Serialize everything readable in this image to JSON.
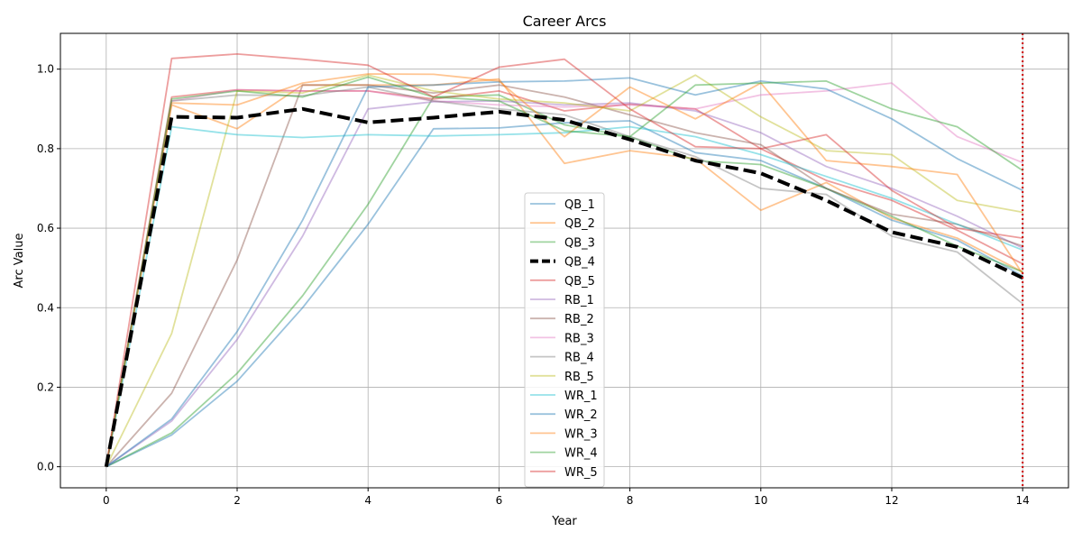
{
  "chart_data": {
    "type": "line",
    "title": "Career Arcs",
    "xlabel": "Year",
    "ylabel": "Arc Value",
    "xlim": [
      -0.7,
      14.7
    ],
    "ylim": [
      -0.053,
      1.09
    ],
    "xticks": [
      0,
      2,
      4,
      6,
      8,
      10,
      12,
      14
    ],
    "yticks": [
      0.0,
      0.2,
      0.4,
      0.6,
      0.8,
      1.0
    ],
    "grid": true,
    "legend_position": "center-bottom",
    "x": [
      0,
      1,
      2,
      3,
      4,
      5,
      6,
      7,
      8,
      9,
      10,
      11,
      12,
      13,
      14
    ],
    "vertical_line": {
      "x": 14,
      "color": "#cc0000",
      "style": "dotted"
    },
    "series": [
      {
        "name": "QB_1",
        "color": "#1f77b4",
        "highlight": false,
        "values": [
          0,
          0.08,
          0.215,
          0.4,
          0.61,
          0.85,
          0.852,
          0.865,
          0.87,
          0.79,
          0.77,
          0.7,
          0.62,
          0.57,
          0.48
        ]
      },
      {
        "name": "QB_2",
        "color": "#ff7f0e",
        "highlight": false,
        "values": [
          0,
          0.91,
          0.85,
          0.96,
          0.96,
          0.96,
          0.975,
          0.763,
          0.795,
          0.775,
          0.645,
          0.715,
          0.625,
          0.575,
          0.49
        ]
      },
      {
        "name": "QB_3",
        "color": "#2ca02c",
        "highlight": false,
        "values": [
          0,
          0.085,
          0.235,
          0.43,
          0.66,
          0.93,
          0.935,
          0.86,
          0.83,
          0.77,
          0.76,
          0.7,
          0.63,
          0.555,
          0.49
        ]
      },
      {
        "name": "QB_4",
        "color": "#000000",
        "highlight": true,
        "values": [
          0,
          0.88,
          0.878,
          0.9,
          0.866,
          0.878,
          0.893,
          0.872,
          0.823,
          0.77,
          0.738,
          0.67,
          0.59,
          0.553,
          0.475
        ]
      },
      {
        "name": "QB_5",
        "color": "#d62728",
        "highlight": false,
        "values": [
          0,
          0.93,
          0.948,
          0.945,
          0.945,
          0.925,
          0.945,
          0.895,
          0.912,
          0.9,
          0.8,
          0.72,
          0.67,
          0.595,
          0.51
        ]
      },
      {
        "name": "RB_1",
        "color": "#9467bd",
        "highlight": false,
        "values": [
          0,
          0.115,
          0.32,
          0.58,
          0.9,
          0.918,
          0.92,
          0.91,
          0.915,
          0.895,
          0.84,
          0.755,
          0.7,
          0.63,
          0.55
        ]
      },
      {
        "name": "RB_2",
        "color": "#8c564b",
        "highlight": false,
        "values": [
          0,
          0.185,
          0.52,
          0.96,
          0.96,
          0.94,
          0.96,
          0.93,
          0.885,
          0.84,
          0.81,
          0.7,
          0.635,
          0.61,
          0.555
        ]
      },
      {
        "name": "RB_3",
        "color": "#e377c2",
        "highlight": false,
        "values": [
          0,
          0.92,
          0.948,
          0.945,
          0.945,
          0.92,
          0.91,
          0.905,
          0.91,
          0.9,
          0.935,
          0.945,
          0.965,
          0.83,
          0.765
        ]
      },
      {
        "name": "RB_4",
        "color": "#7f7f7f",
        "highlight": false,
        "values": [
          0,
          0.92,
          0.935,
          0.933,
          0.955,
          0.92,
          0.9,
          0.885,
          0.83,
          0.78,
          0.7,
          0.685,
          0.58,
          0.54,
          0.41
        ]
      },
      {
        "name": "RB_5",
        "color": "#bcbd22",
        "highlight": false,
        "values": [
          0,
          0.335,
          0.945,
          0.94,
          0.985,
          0.945,
          0.925,
          0.915,
          0.895,
          0.985,
          0.88,
          0.795,
          0.785,
          0.67,
          0.64
        ]
      },
      {
        "name": "WR_1",
        "color": "#17becf",
        "highlight": false,
        "values": [
          0,
          0.855,
          0.835,
          0.828,
          0.835,
          0.832,
          0.835,
          0.84,
          0.855,
          0.83,
          0.785,
          0.73,
          0.675,
          0.61,
          0.545
        ]
      },
      {
        "name": "WR_2",
        "color": "#1f77b4",
        "highlight": false,
        "values": [
          0,
          0.12,
          0.34,
          0.62,
          0.955,
          0.96,
          0.968,
          0.97,
          0.978,
          0.935,
          0.97,
          0.95,
          0.875,
          0.775,
          0.695
        ]
      },
      {
        "name": "WR_3",
        "color": "#ff7f0e",
        "highlight": false,
        "values": [
          0,
          0.915,
          0.91,
          0.965,
          0.988,
          0.987,
          0.97,
          0.83,
          0.955,
          0.875,
          0.965,
          0.77,
          0.755,
          0.735,
          0.485
        ]
      },
      {
        "name": "WR_4",
        "color": "#2ca02c",
        "highlight": false,
        "values": [
          0,
          0.925,
          0.945,
          0.93,
          0.98,
          0.93,
          0.92,
          0.845,
          0.83,
          0.96,
          0.965,
          0.97,
          0.9,
          0.855,
          0.745
        ]
      },
      {
        "name": "WR_5",
        "color": "#d62728",
        "highlight": false,
        "values": [
          0,
          1.027,
          1.038,
          1.025,
          1.01,
          0.93,
          1.005,
          1.025,
          0.9,
          0.805,
          0.8,
          0.835,
          0.695,
          0.6,
          0.575
        ]
      }
    ]
  }
}
